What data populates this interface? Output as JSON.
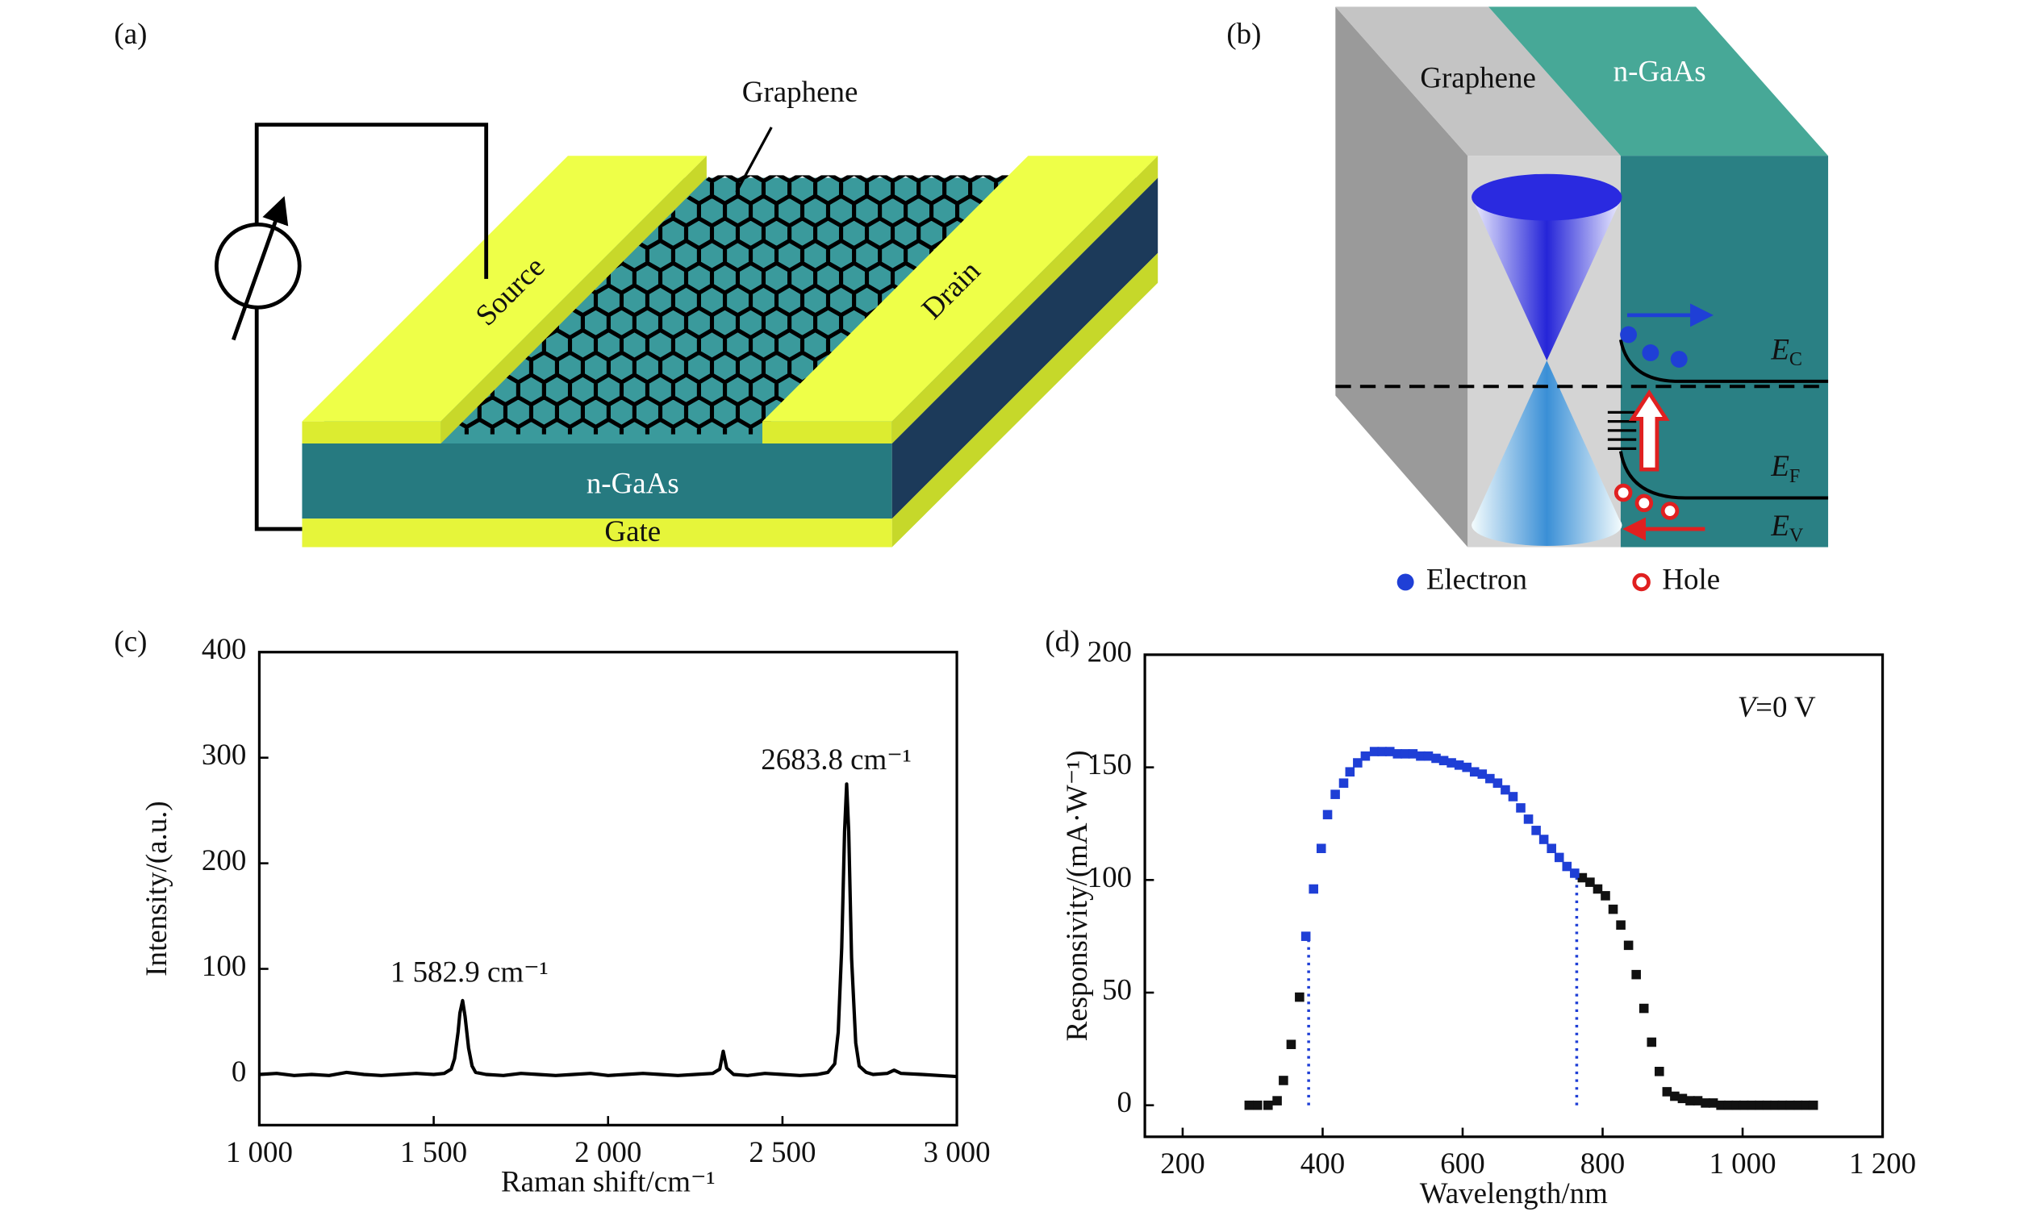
{
  "panels": {
    "a": {
      "label": "(a)",
      "graphene": "Graphene",
      "source": "Source",
      "drain": "Drain",
      "substrate": "n-GaAs",
      "gate": "Gate"
    },
    "b": {
      "label": "(b)",
      "graphene": "Graphene",
      "substrate": "n-GaAs",
      "levels": [
        {
          "symbol": "E",
          "subscript": "C"
        },
        {
          "symbol": "E",
          "subscript": "F"
        },
        {
          "symbol": "E",
          "subscript": "V"
        }
      ],
      "legend": [
        "Electron",
        "Hole"
      ]
    }
  },
  "chart_data": [
    {
      "type": "line",
      "panel_label": "(c)",
      "x_label": "Raman shift/cm⁻¹",
      "y_label": "Intensity/(a.u.)",
      "color": "#000000",
      "x": [
        1000,
        1050,
        1100,
        1150,
        1200,
        1250,
        1300,
        1350,
        1400,
        1450,
        1500,
        1530,
        1550,
        1560,
        1570,
        1575,
        1583,
        1590,
        1600,
        1610,
        1620,
        1650,
        1700,
        1750,
        1800,
        1850,
        1900,
        1950,
        2000,
        2050,
        2100,
        2150,
        2200,
        2250,
        2300,
        2320,
        2330,
        2340,
        2360,
        2400,
        2450,
        2500,
        2550,
        2600,
        2630,
        2650,
        2660,
        2670,
        2678,
        2684,
        2690,
        2698,
        2710,
        2720,
        2740,
        2760,
        2800,
        2820,
        2840,
        2900,
        2950,
        3000
      ],
      "values": [
        0,
        1,
        -1,
        0,
        -1,
        2,
        0,
        -1,
        0,
        1,
        0,
        1,
        5,
        15,
        40,
        58,
        70,
        55,
        25,
        8,
        2,
        0,
        -1,
        1,
        0,
        -1,
        0,
        1,
        -1,
        0,
        1,
        0,
        -1,
        0,
        1,
        5,
        22,
        6,
        0,
        -1,
        1,
        0,
        -1,
        0,
        2,
        10,
        40,
        120,
        230,
        275,
        230,
        110,
        30,
        8,
        2,
        0,
        1,
        4,
        1,
        0,
        -1,
        -2
      ],
      "xlim": [
        1000,
        3000
      ],
      "ylim": [
        -48,
        400
      ],
      "xticks": [
        {
          "value": 1000,
          "label": "1 000"
        },
        {
          "value": 1500,
          "label": "1 500"
        },
        {
          "value": 2000,
          "label": "2 000"
        },
        {
          "value": 2500,
          "label": "2 500"
        },
        {
          "value": 3000,
          "label": "3 000"
        }
      ],
      "yticks": [
        0,
        100,
        200,
        300,
        400
      ],
      "annotations": [
        "1 582.9 cm⁻¹",
        "2683.8 cm⁻¹"
      ]
    },
    {
      "type": "scatter",
      "panel_label": "(d)",
      "x_label": "Wavelength/nm",
      "y_label": "Responsivity/(mA·W⁻¹)",
      "annotation": {
        "variable": "V",
        "text": "=0 V"
      },
      "series": [
        {
          "color": "#111111",
          "x": [
            295,
            307,
            322,
            335,
            344,
            355,
            367,
            771,
            782,
            793,
            804,
            815,
            826,
            837,
            848,
            859,
            870,
            881,
            892,
            903,
            914,
            925,
            936,
            947,
            958,
            969,
            980,
            991,
            1002,
            1013,
            1024,
            1035,
            1046,
            1057,
            1068,
            1079,
            1090,
            1101
          ],
          "values": [
            0,
            0,
            0,
            2,
            11,
            27,
            48,
            101,
            99,
            96,
            93,
            87,
            80,
            71,
            58,
            43,
            28,
            15,
            6,
            4,
            3,
            2,
            2,
            1,
            1,
            0,
            0,
            0,
            0,
            0,
            0,
            0,
            0,
            0,
            0,
            0,
            0,
            0
          ]
        },
        {
          "color": "#1f3fd6",
          "x": [
            376,
            387,
            398,
            407,
            418,
            430,
            439,
            450,
            461,
            474,
            485,
            496,
            507,
            518,
            529,
            540,
            551,
            562,
            573,
            584,
            595,
            606,
            617,
            628,
            639,
            650,
            661,
            672,
            683,
            694,
            705,
            716,
            727,
            738,
            749,
            760
          ],
          "values": [
            75,
            96,
            114,
            129,
            138,
            143,
            148,
            152,
            155,
            157,
            157,
            157,
            156,
            156,
            156,
            155,
            155,
            154,
            153,
            152,
            151,
            150,
            148,
            147,
            145,
            143,
            140,
            137,
            132,
            127,
            122,
            118,
            114,
            110,
            106,
            103
          ]
        }
      ],
      "vlines": {
        "color": "#1f3fd6",
        "x": [
          380,
          763
        ]
      },
      "xlim": [
        146,
        1200
      ],
      "ylim": [
        -14,
        200
      ],
      "xticks": [
        200,
        400,
        600,
        800,
        {
          "value": 1000,
          "label": "1 000"
        },
        {
          "value": 1200,
          "label": "1 200"
        }
      ],
      "yticks": [
        0,
        50,
        100,
        150,
        200
      ]
    }
  ]
}
